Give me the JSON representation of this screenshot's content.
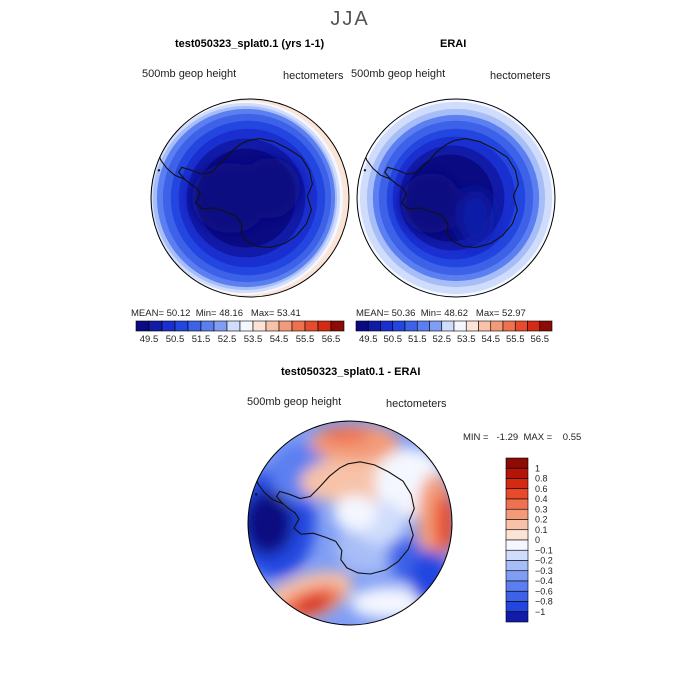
{
  "figure": {
    "season": "JJA",
    "colors": {
      "blues": [
        "#0a0a82",
        "#111ba8",
        "#1a2fd0",
        "#2346e0",
        "#3d62e8",
        "#5b7ff0",
        "#7f9df4",
        "#a7bdf7",
        "#cfdcfb"
      ],
      "neutral": "#f4f7ff",
      "reds": [
        "#fbe3d6",
        "#f7c2a8",
        "#f39b78",
        "#ef7150",
        "#e84b2c",
        "#d42a14",
        "#b51508",
        "#8c0b04"
      ],
      "coast": "#111111"
    }
  },
  "chart_data": [
    {
      "type": "heatmap",
      "name": "model-panel",
      "title": "test050323_splat0.1 (yrs 1-1)",
      "variable_label": "500mb geop height",
      "units_label": "hectometers",
      "stats": {
        "mean_label": "MEAN=",
        "mean": "50.12",
        "min_label": "Min=",
        "min": "48.16",
        "max_label": "Max=",
        "max": "53.41"
      },
      "colorbar_ticks": [
        "49.5",
        "50.5",
        "51.5",
        "52.5",
        "53.5",
        "54.5",
        "55.5",
        "56.5"
      ],
      "colorbar_levels": 16
    },
    {
      "type": "heatmap",
      "name": "obs-panel",
      "title": "ERAI",
      "variable_label": "500mb geop height",
      "units_label": "hectometers",
      "stats": {
        "mean_label": "MEAN=",
        "mean": "50.36",
        "min_label": "Min=",
        "min": "48.62",
        "max_label": "Max=",
        "max": "52.97"
      },
      "colorbar_ticks": [
        "49.5",
        "50.5",
        "51.5",
        "52.5",
        "53.5",
        "54.5",
        "55.5",
        "56.5"
      ],
      "colorbar_levels": 16
    },
    {
      "type": "heatmap",
      "name": "diff-panel",
      "title": "test050323_splat0.1 - ERAI",
      "variable_label": "500mb geop height",
      "units_label": "hectometers",
      "minmax_text": "MIN =   -1.29  MAX =    0.55",
      "colorbar_ticks": [
        "1",
        "0.8",
        "0.6",
        "0.4",
        "0.3",
        "0.2",
        "0.1",
        "0",
        "−0.1",
        "−0.2",
        "−0.3",
        "−0.4",
        "−0.6",
        "−0.8",
        "−1"
      ]
    }
  ]
}
